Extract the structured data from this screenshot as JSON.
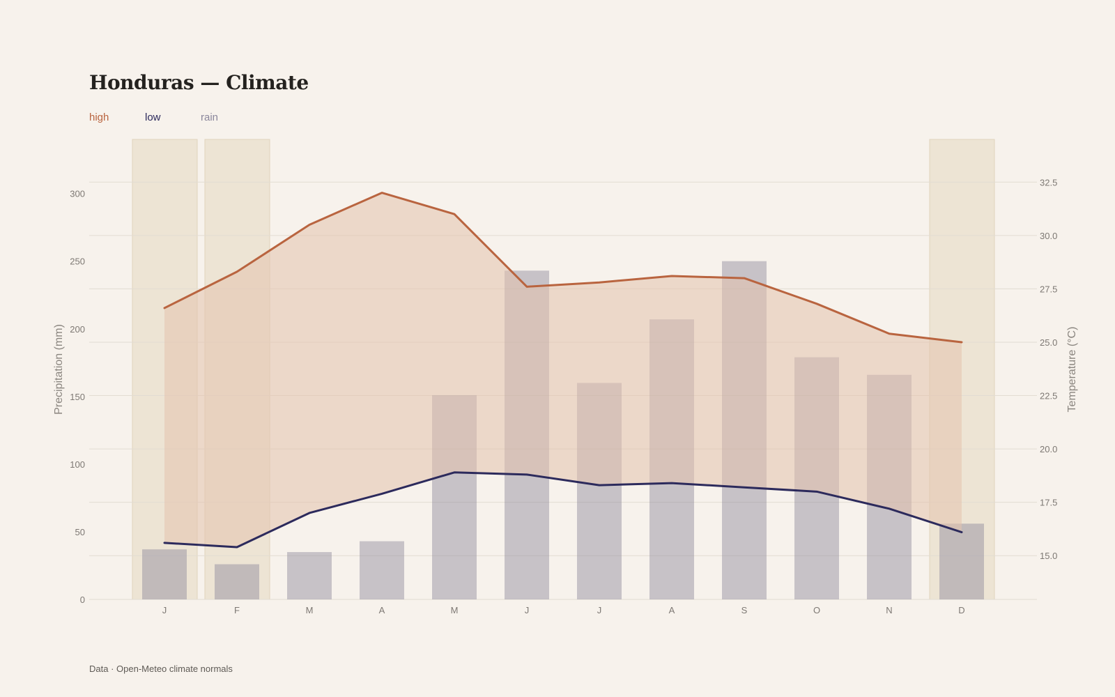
{
  "title": "Honduras — Climate",
  "legend": {
    "high": "high",
    "low": "low",
    "rain": "rain"
  },
  "footer": "Data · Open-Meteo climate normals",
  "colors": {
    "background": "#f7f2ec",
    "high": "#b9643f",
    "low": "#2c2a5c",
    "rain": "#8b879c",
    "band_fill": "#e3c2ad",
    "season": "#e8dcc8",
    "grid": "#e2dcd2"
  },
  "chart_data": {
    "type": "bar",
    "categories": [
      "J",
      "F",
      "M",
      "A",
      "M",
      "J",
      "J",
      "A",
      "S",
      "O",
      "N",
      "D"
    ],
    "series": [
      {
        "name": "rain",
        "type": "bar",
        "axis": "left",
        "values": [
          37,
          26,
          35,
          43,
          151,
          243,
          160,
          207,
          250,
          179,
          166,
          56
        ]
      },
      {
        "name": "high",
        "type": "line",
        "axis": "right",
        "values": [
          26.6,
          28.3,
          30.5,
          32.0,
          31.0,
          27.6,
          27.8,
          28.1,
          28.0,
          26.8,
          25.4,
          25.0
        ]
      },
      {
        "name": "low",
        "type": "line",
        "axis": "right",
        "values": [
          15.6,
          15.4,
          17.0,
          17.9,
          18.9,
          18.8,
          18.3,
          18.4,
          18.2,
          18.0,
          17.2,
          16.1
        ]
      }
    ],
    "shaded_months": [
      0,
      1,
      11
    ],
    "ylabel_left": "Precipitation (mm)",
    "ylabel_right": "Temperature (°C)",
    "yticks_left": [
      0,
      50,
      100,
      150,
      200,
      250,
      300
    ],
    "yticks_right": [
      "15.0",
      "17.5",
      "20.0",
      "22.5",
      "25.0",
      "27.5",
      "30.0",
      "32.5"
    ],
    "ylim_left": [
      0,
      340
    ],
    "ylim_right": [
      12.95,
      34.5
    ],
    "grid": true,
    "legend_position": "top-left"
  }
}
